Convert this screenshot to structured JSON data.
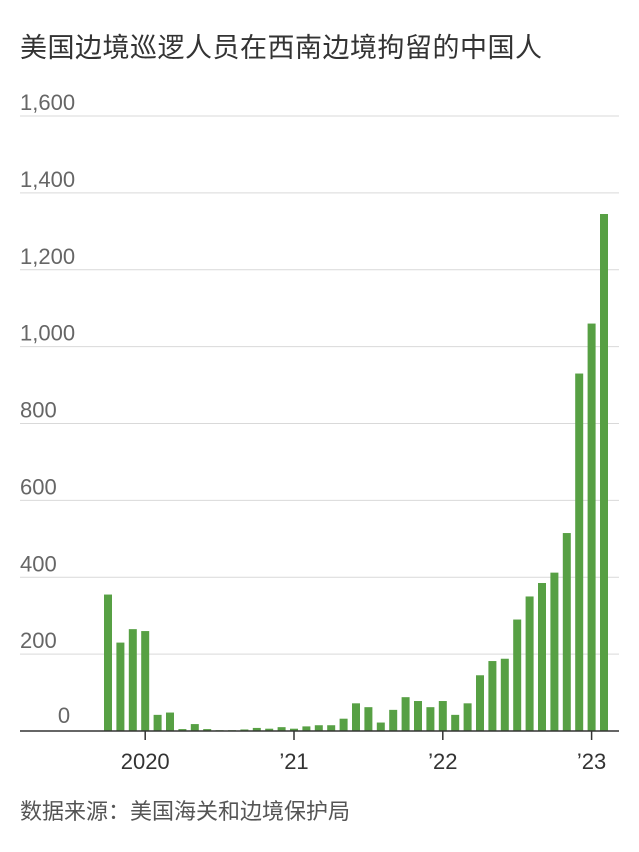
{
  "title": "美国边境巡逻人员在西南边境拘留的中国人",
  "source": "数据来源：美国海关和边境保护局",
  "colors": {
    "bar": "#57a044",
    "grid": "#d9d9d9",
    "axis": "#333333"
  },
  "chart_data": {
    "type": "bar",
    "title": "美国边境巡逻人员在西南边境拘留的中国人",
    "xlabel": "",
    "ylabel": "",
    "ylim": [
      0,
      1600
    ],
    "yticks": [
      0,
      200,
      400,
      600,
      800,
      1000,
      1200,
      1400,
      1600
    ],
    "ytick_labels": [
      "0",
      "200",
      "400",
      "600",
      "800",
      "1,000",
      "1,200",
      "1,400",
      "1,600"
    ],
    "grid": true,
    "categories": [
      "2019-10",
      "2019-11",
      "2019-12",
      "2020-01",
      "2020-02",
      "2020-03",
      "2020-04",
      "2020-05",
      "2020-06",
      "2020-07",
      "2020-08",
      "2020-09",
      "2020-10",
      "2020-11",
      "2020-12",
      "2021-01",
      "2021-02",
      "2021-03",
      "2021-04",
      "2021-05",
      "2021-06",
      "2021-07",
      "2021-08",
      "2021-09",
      "2021-10",
      "2021-11",
      "2021-12",
      "2022-01",
      "2022-02",
      "2022-03",
      "2022-04",
      "2022-05",
      "2022-06",
      "2022-07",
      "2022-08",
      "2022-09",
      "2022-10",
      "2022-11",
      "2022-12",
      "2023-01",
      "2023-02"
    ],
    "values": [
      355,
      230,
      265,
      260,
      42,
      48,
      5,
      18,
      5,
      2,
      2,
      4,
      8,
      6,
      10,
      6,
      12,
      15,
      15,
      32,
      72,
      62,
      22,
      55,
      88,
      78,
      62,
      78,
      42,
      72,
      145,
      182,
      188,
      290,
      350,
      385,
      412,
      515,
      930,
      1060,
      1345
    ],
    "xtick_labels": [
      {
        "label": "2020",
        "category": "2020-01"
      },
      {
        "label": "’21",
        "category": "2021-01"
      },
      {
        "label": "’22",
        "category": "2022-01"
      },
      {
        "label": "’23",
        "category": "2023-01"
      }
    ]
  }
}
